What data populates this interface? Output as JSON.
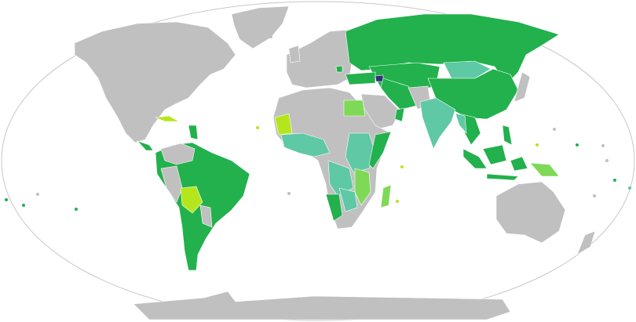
{
  "map": {
    "projection": "robinson",
    "colors": {
      "ocean": "#ffffff",
      "outline": "#c8c8c8",
      "no_data": "#c0c0c0",
      "category_green": "#22b14c",
      "category_teal": "#5fc8a4",
      "category_light_green": "#7ed957",
      "category_yellow_green": "#b5e61d",
      "category_dark_blue": "#30307a"
    }
  }
}
